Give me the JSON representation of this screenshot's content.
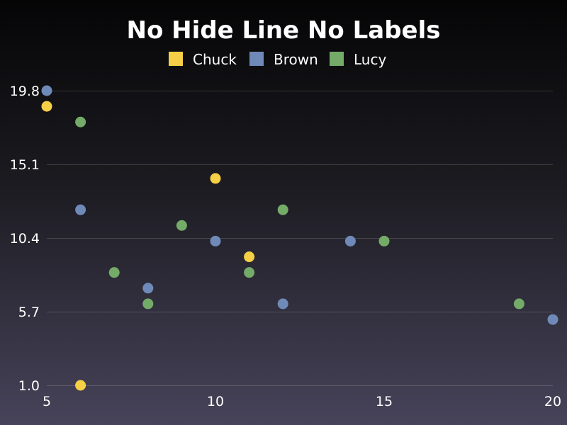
{
  "chart_data": {
    "type": "scatter",
    "title": "No Hide Line No Labels",
    "xlabel": "",
    "ylabel": "",
    "xlim": [
      5,
      20
    ],
    "ylim": [
      1.0,
      19.8
    ],
    "x_ticks": [
      "5",
      "10",
      "15",
      "20"
    ],
    "y_ticks": [
      "1.0",
      "5.7",
      "10.4",
      "15.1",
      "19.8"
    ],
    "grid": true,
    "legend_position": "top-center",
    "series": [
      {
        "name": "Chuck",
        "color": "#f5cf46",
        "points": [
          [
            5,
            18.8
          ],
          [
            6,
            1.0
          ],
          [
            10,
            14.2
          ],
          [
            11,
            9.2
          ]
        ]
      },
      {
        "name": "Brown",
        "color": "#6f8ab8",
        "points": [
          [
            5,
            19.8
          ],
          [
            6,
            12.2
          ],
          [
            8,
            7.2
          ],
          [
            10,
            10.2
          ],
          [
            12,
            6.2
          ],
          [
            14,
            10.2
          ],
          [
            20,
            5.2
          ]
        ]
      },
      {
        "name": "Lucy",
        "color": "#74ab69",
        "points": [
          [
            6,
            17.8
          ],
          [
            7,
            8.2
          ],
          [
            8,
            6.2
          ],
          [
            9,
            11.2
          ],
          [
            11,
            8.2
          ],
          [
            12,
            12.2
          ],
          [
            15,
            10.2
          ],
          [
            19,
            6.2
          ]
        ]
      }
    ]
  }
}
